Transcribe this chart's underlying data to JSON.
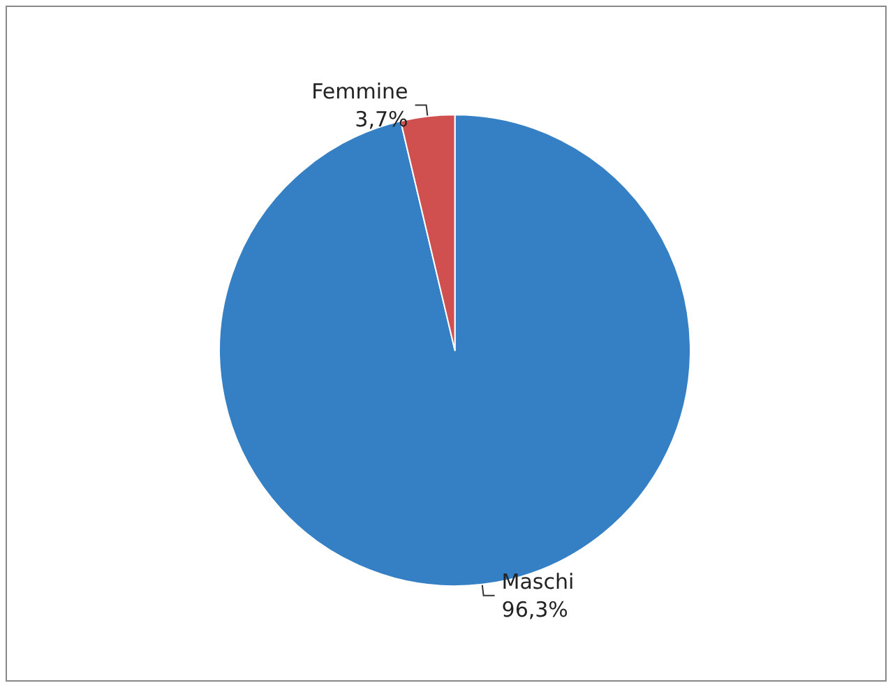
{
  "chart_data": {
    "type": "pie",
    "categories": [
      "Maschi",
      "Femmine"
    ],
    "values": [
      96.3,
      3.7
    ],
    "colors": [
      "#3580c4",
      "#d05050"
    ],
    "value_labels": [
      "96,3%",
      "3,7%"
    ],
    "legend": false
  }
}
